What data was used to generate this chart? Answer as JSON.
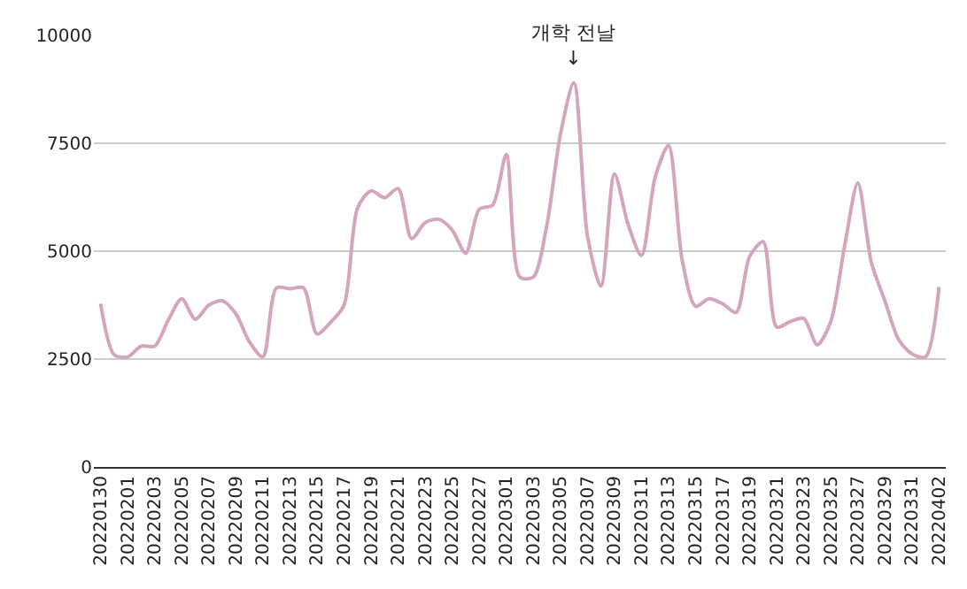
{
  "chart_data": {
    "type": "line",
    "annotations": [
      "개학 전날\n↓"
    ],
    "categories": [
      "20220130",
      null,
      "20220201",
      null,
      "20220203",
      null,
      "20220205",
      null,
      "20220207",
      null,
      "20220209",
      null,
      "20220211",
      null,
      "20220213",
      null,
      "20220215",
      null,
      "20220217",
      null,
      "20220219",
      null,
      "20220221",
      null,
      "20220223",
      null,
      "20220225",
      null,
      "20220227",
      null,
      "20220301",
      null,
      "20220303",
      null,
      "20220305",
      null,
      "20220307",
      null,
      "20220309",
      null,
      "20220311",
      null,
      "20220313",
      null,
      "20220315",
      null,
      "20220317",
      null,
      "20220319",
      null,
      "20220321",
      null,
      "20220323",
      null,
      "20220325",
      null,
      "20220327",
      null,
      "20220329",
      null,
      "20220331",
      null,
      "20220402"
    ],
    "series": [
      {
        "color": "#d4a5bd",
        "values": [
          3780,
          2600,
          2550,
          2800,
          2800,
          3400,
          3900,
          3420,
          3750,
          3850,
          3550,
          2900,
          2550,
          4150,
          4130,
          4150,
          3080,
          3350,
          3750,
          6000,
          6400,
          6240,
          6450,
          5290,
          5660,
          5740,
          5490,
          4950,
          5970,
          6070,
          7240,
          4400,
          4400,
          5600,
          7700,
          8900,
          5360,
          4190,
          6790,
          5630,
          4900,
          6700,
          7450,
          4810,
          3720,
          3900,
          3780,
          3580,
          4880,
          5220,
          3240,
          3370,
          3440,
          2830,
          3370,
          5080,
          6580,
          4740,
          3850,
          2960,
          2620,
          2550,
          4170
        ]
      }
    ],
    "ylim": [
      0,
      10000
    ],
    "yticks": [
      0,
      2500,
      5000,
      7500,
      10000
    ],
    "grid": "y"
  }
}
